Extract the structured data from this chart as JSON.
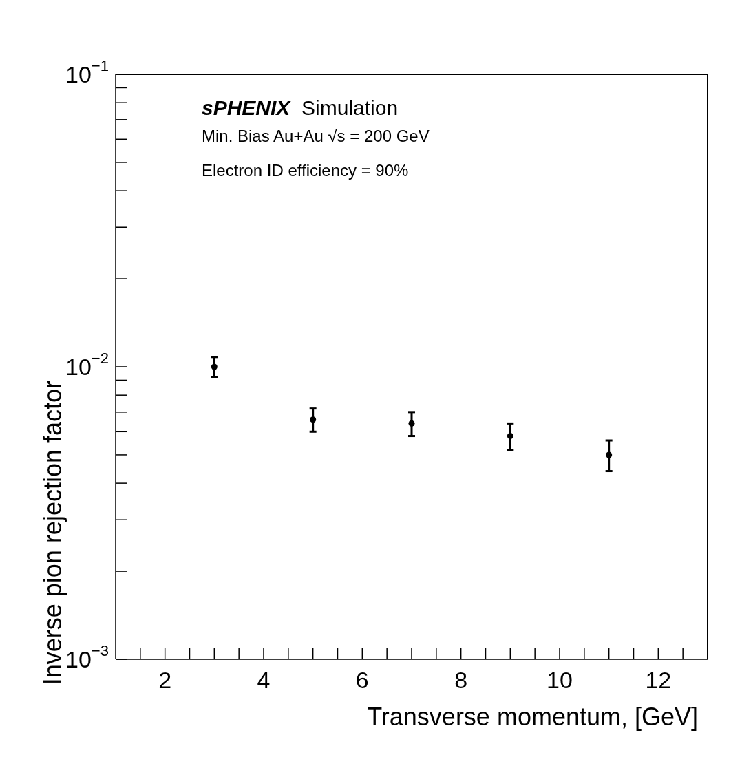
{
  "chart_data": {
    "type": "scatter",
    "xlabel": "Transverse momentum, [GeV]",
    "ylabel": "Inverse pion rejection factor",
    "annotations": [
      "sPHENIX Simulation",
      "Min. Bias Au+Au √s = 200 GeV",
      "Electron ID efficiency = 90%"
    ],
    "x": [
      3,
      5,
      7,
      9,
      11
    ],
    "values": [
      0.01,
      0.0066,
      0.0064,
      0.0058,
      0.005
    ],
    "errors": [
      0.0008,
      0.0006,
      0.0006,
      0.0006,
      0.0006
    ],
    "color": "#000000",
    "marker": "circle",
    "log": "y",
    "xlim": [
      1,
      13
    ],
    "xticks": [
      {
        "value": 1.5,
        "label": null
      },
      2,
      {
        "value": 2.5,
        "label": null
      },
      {
        "value": 3,
        "label": null
      },
      {
        "value": 3.5,
        "label": null
      },
      4,
      {
        "value": 4.5,
        "label": null
      },
      {
        "value": 5,
        "label": null
      },
      {
        "value": 5.5,
        "label": null
      },
      6,
      {
        "value": 6.5,
        "label": null
      },
      {
        "value": 7,
        "label": null
      },
      {
        "value": 7.5,
        "label": null
      },
      8,
      {
        "value": 8.5,
        "label": null
      },
      {
        "value": 9,
        "label": null
      },
      {
        "value": 9.5,
        "label": null
      },
      10,
      {
        "value": 10.5,
        "label": null
      },
      {
        "value": 11,
        "label": null
      },
      {
        "value": 11.5,
        "label": null
      },
      12,
      {
        "value": 12.5,
        "label": null
      }
    ],
    "ylim": [
      0.001,
      0.1
    ],
    "yticks": [
      {
        "value": 0.001,
        "label": "10$^{−3}$"
      },
      {
        "value": 0.002,
        "label": null
      },
      {
        "value": 0.003,
        "label": null
      },
      {
        "value": 0.004,
        "label": null
      },
      {
        "value": 0.005,
        "label": null
      },
      {
        "value": 0.006,
        "label": null
      },
      {
        "value": 0.007,
        "label": null
      },
      {
        "value": 0.008,
        "label": null
      },
      {
        "value": 0.009,
        "label": null
      },
      {
        "value": 0.01,
        "label": "10$^{−2}$"
      },
      {
        "value": 0.02,
        "label": null
      },
      {
        "value": 0.03,
        "label": null
      },
      {
        "value": 0.04,
        "label": null
      },
      {
        "value": 0.05,
        "label": null
      },
      {
        "value": 0.06,
        "label": null
      },
      {
        "value": 0.07,
        "label": null
      },
      {
        "value": 0.08,
        "label": null
      },
      {
        "value": 0.09,
        "label": null
      },
      {
        "value": 0.1,
        "label": "10$^{−1}$"
      }
    ]
  }
}
